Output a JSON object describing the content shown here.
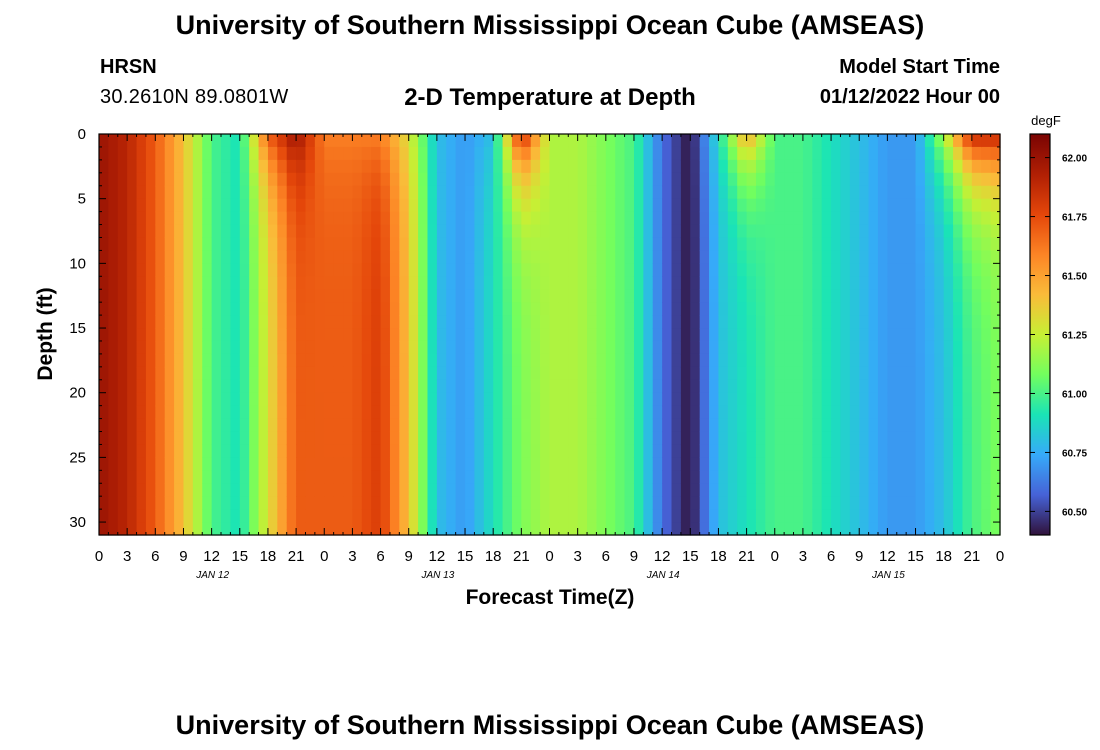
{
  "header": {
    "title": "University of Southern Mississippi Ocean Cube (AMSEAS)",
    "station": "HRSN",
    "coords": "30.2610N  89.0801W",
    "subtitle": "2-D Temperature at Depth",
    "start_label": "Model Start Time",
    "start_value": "01/12/2022 Hour 00"
  },
  "footer": {
    "title": "University of Southern Mississippi Ocean Cube (AMSEAS)"
  },
  "chart_data": {
    "type": "heatmap",
    "xlabel": "Forecast Time(Z)",
    "ylabel": "Depth (ft)",
    "x_ticks": [
      "0",
      "3",
      "6",
      "9",
      "12",
      "15",
      "18",
      "21",
      "0",
      "3",
      "6",
      "9",
      "12",
      "15",
      "18",
      "21",
      "0",
      "3",
      "6",
      "9",
      "12",
      "15",
      "18",
      "21",
      "0",
      "3",
      "6",
      "9",
      "12",
      "15",
      "18",
      "21",
      "0"
    ],
    "day_labels": [
      "JAN 12",
      "JAN 13",
      "JAN 14",
      "JAN 15"
    ],
    "y_ticks": [
      0,
      5,
      10,
      15,
      20,
      25,
      30
    ],
    "ylim": [
      0,
      31
    ],
    "x_range_hours": [
      0,
      96
    ],
    "colorbar": {
      "unit": "degF",
      "range": [
        60.4,
        62.1
      ],
      "ticks": [
        "62.00",
        "61.75",
        "61.50",
        "61.25",
        "61.00",
        "60.75",
        "60.50"
      ],
      "tick_values": [
        62.0,
        61.75,
        61.5,
        61.25,
        61.0,
        60.75,
        60.5
      ],
      "colors": [
        "#30123b",
        "#4662d7",
        "#36aaf9",
        "#1ae4b6",
        "#72fe5e",
        "#c7ef34",
        "#fabb39",
        "#fc8425",
        "#e4460a",
        "#b01f04",
        "#7a0403"
      ]
    },
    "profile_hours": [
      0,
      3,
      6,
      9,
      12,
      15,
      18,
      21,
      24,
      27,
      30,
      33,
      36,
      39,
      42,
      45,
      48,
      51,
      54,
      57,
      60,
      63,
      66,
      69,
      72,
      75,
      78,
      81,
      84,
      87,
      90,
      93,
      96
    ],
    "surface_temps_degF": [
      62.0,
      61.9,
      61.7,
      61.4,
      61.0,
      60.9,
      61.7,
      62.0,
      61.6,
      61.6,
      61.6,
      61.3,
      60.8,
      60.7,
      60.8,
      61.9,
      61.2,
      61.2,
      61.1,
      61.0,
      60.6,
      60.4,
      60.9,
      61.5,
      61.0,
      61.0,
      60.9,
      60.8,
      60.7,
      60.7,
      61.2,
      61.9,
      61.9
    ],
    "bottom_temps_degF": [
      62.0,
      61.9,
      61.7,
      61.4,
      61.0,
      60.9,
      61.3,
      61.7,
      61.7,
      61.7,
      61.8,
      61.4,
      60.8,
      60.7,
      60.9,
      61.1,
      61.2,
      61.2,
      61.1,
      61.0,
      60.6,
      60.4,
      60.8,
      60.9,
      61.0,
      61.0,
      60.9,
      60.8,
      60.7,
      60.7,
      60.8,
      61.0,
      61.1
    ]
  }
}
